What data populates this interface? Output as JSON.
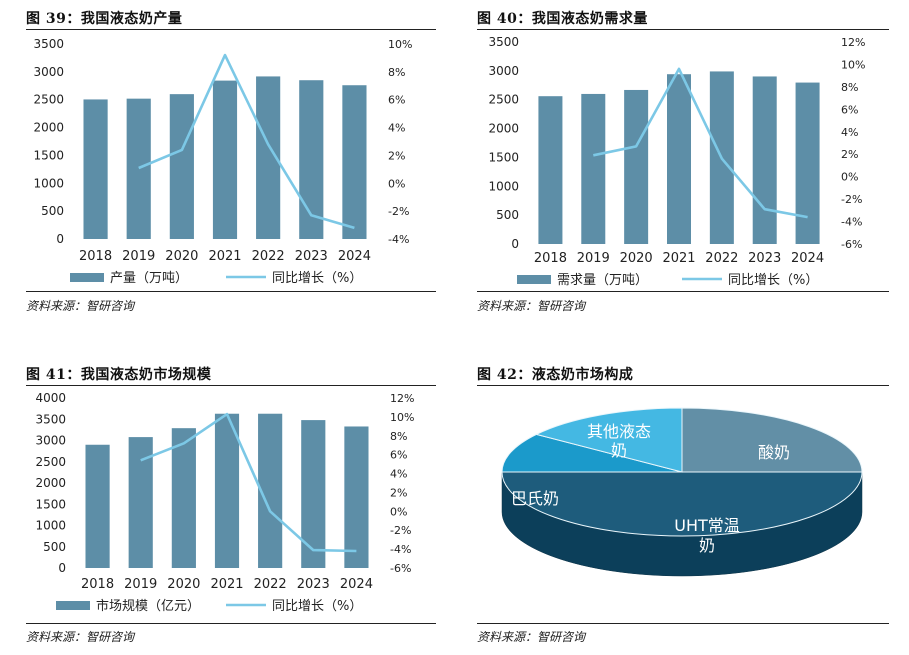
{
  "colors": {
    "bar": "#5d8ea7",
    "line": "#7cc8e6",
    "pie_top": [
      "#628fa6",
      "#1e5c7c",
      "#1b9acb",
      "#44b8e3"
    ]
  },
  "charts": [
    {
      "figure_title": "图 39：我国液态奶产量",
      "source": "资料来源：智研咨询",
      "legend_bar": "产量（万吨）",
      "legend_line": "同比增长（%）",
      "left_ticks": [
        "3500",
        "3000",
        "2500",
        "2000",
        "1500",
        "1000",
        "500",
        "0"
      ],
      "right_ticks": [
        "10%",
        "8%",
        "6%",
        "4%",
        "2%",
        "0%",
        "-2%",
        "-4%"
      ]
    },
    {
      "figure_title": "图 40：我国液态奶需求量",
      "source": "资料来源：智研咨询",
      "legend_bar": "需求量（万吨）",
      "legend_line": "同比增长（%）",
      "left_ticks": [
        "3500",
        "3000",
        "2500",
        "2000",
        "1500",
        "1000",
        "500",
        "0"
      ],
      "right_ticks": [
        "12%",
        "10%",
        "8%",
        "6%",
        "4%",
        "2%",
        "0%",
        "-2%",
        "-4%",
        "-6%"
      ]
    },
    {
      "figure_title": "图 41：我国液态奶市场规模",
      "source": "资料来源：智研咨询",
      "legend_bar": "市场规模（亿元）",
      "legend_line": "同比增长（%）",
      "left_ticks": [
        "4000",
        "3500",
        "3000",
        "2500",
        "2000",
        "1500",
        "1000",
        "500",
        "0"
      ],
      "right_ticks": [
        "12%",
        "10%",
        "8%",
        "6%",
        "4%",
        "2%",
        "0%",
        "-2%",
        "-4%",
        "-6%"
      ]
    },
    {
      "figure_title": "图 42：液态奶市场构成",
      "source": "资料来源：智研咨询"
    }
  ],
  "chart_data": [
    {
      "type": "bar",
      "categories": [
        "2018",
        "2019",
        "2020",
        "2021",
        "2022",
        "2023",
        "2024"
      ],
      "series": [
        {
          "name": "产量（万吨）",
          "type": "bar",
          "axis": "left",
          "values": [
            2505,
            2519,
            2600,
            2843,
            2918,
            2850,
            2760
          ]
        },
        {
          "name": "同比增长（%）",
          "type": "line",
          "axis": "right",
          "values": [
            null,
            1.1,
            2.4,
            9.2,
            2.8,
            -2.3,
            -3.2
          ]
        }
      ],
      "ylim_left": [
        0,
        3500
      ],
      "ylim_right": [
        -4,
        10
      ]
    },
    {
      "type": "bar",
      "categories": [
        "2018",
        "2019",
        "2020",
        "2021",
        "2022",
        "2023",
        "2024"
      ],
      "series": [
        {
          "name": "需求量（万吨）",
          "type": "bar",
          "axis": "left",
          "values": [
            2561,
            2600,
            2669,
            2942,
            2990,
            2903,
            2797
          ]
        },
        {
          "name": "同比增长（%）",
          "type": "line",
          "axis": "right",
          "values": [
            null,
            1.9,
            2.7,
            9.6,
            1.6,
            -2.9,
            -3.6
          ]
        }
      ],
      "ylim_left": [
        0,
        3500
      ],
      "ylim_right": [
        -6,
        12
      ]
    },
    {
      "type": "bar",
      "categories": [
        "2018",
        "2019",
        "2020",
        "2021",
        "2022",
        "2023",
        "2024"
      ],
      "series": [
        {
          "name": "市场规模（亿元）",
          "type": "bar",
          "axis": "left",
          "values": [
            2900,
            3080,
            3290,
            3630,
            3630,
            3480,
            3330
          ]
        },
        {
          "name": "同比增长（%）",
          "type": "line",
          "axis": "right",
          "values": [
            null,
            5.4,
            7.2,
            10.3,
            0.0,
            -4.1,
            -4.2
          ]
        }
      ],
      "ylim_left": [
        0,
        4000
      ],
      "ylim_right": [
        -6,
        12
      ]
    },
    {
      "type": "pie",
      "labels": [
        "酸奶",
        "UHT常温奶",
        "巴氏奶",
        "其他液态奶"
      ],
      "values": [
        25,
        50,
        10,
        15
      ]
    }
  ]
}
